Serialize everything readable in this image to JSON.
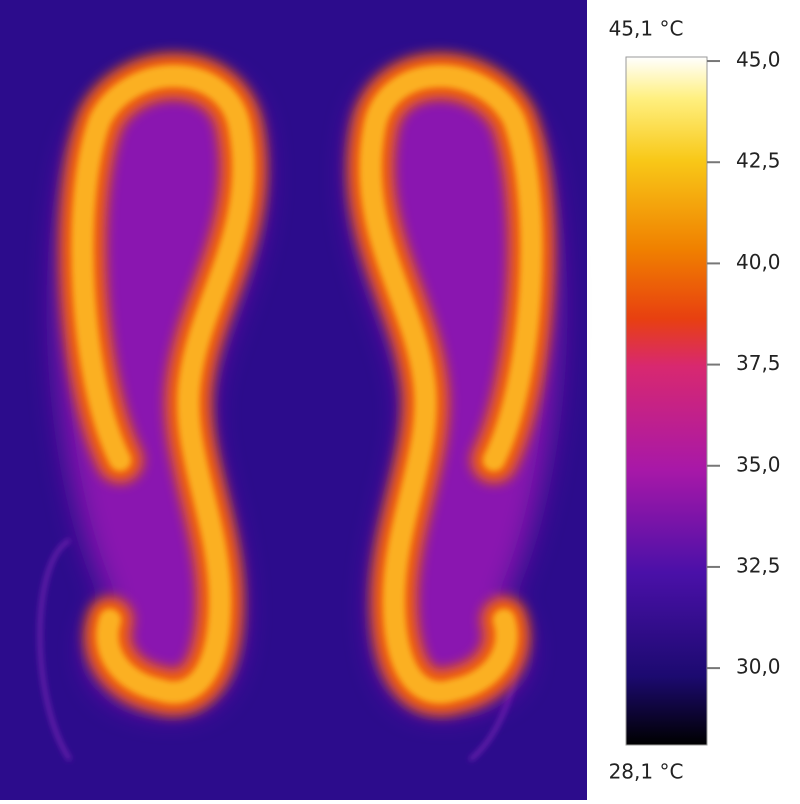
{
  "max_label": "45,1 °C",
  "min_label": "28,1 °C",
  "colorbar": {
    "range": [
      28.1,
      45.1
    ],
    "ticks": [
      {
        "value": 45,
        "label": "45,0"
      },
      {
        "value": 42.5,
        "label": "42,5"
      },
      {
        "value": 40,
        "label": "40,0"
      },
      {
        "value": 37.5,
        "label": "37,5"
      },
      {
        "value": 35,
        "label": "35,0"
      },
      {
        "value": 32.5,
        "label": "32,5"
      },
      {
        "value": 30,
        "label": "30,0"
      }
    ]
  }
}
